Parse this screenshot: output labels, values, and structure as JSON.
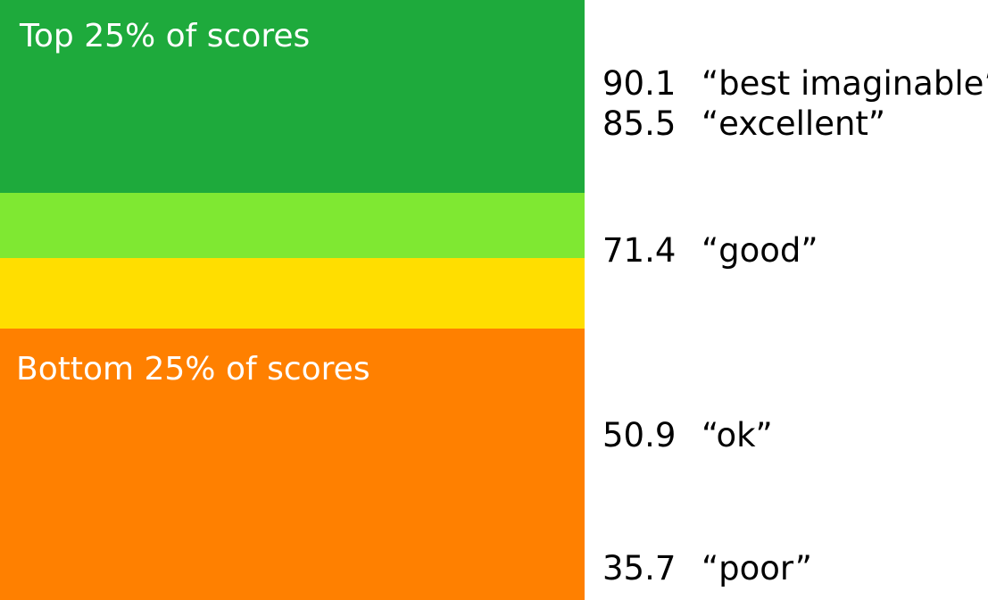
{
  "chart_data": {
    "type": "bar",
    "bands": [
      {
        "label": "Top 25% of scores",
        "color": "#1eaa3c"
      },
      {
        "label": "",
        "color": "#7fe832"
      },
      {
        "label": "",
        "color": "#ffde00"
      },
      {
        "label": "Bottom 25% of scores",
        "color": "#ff8000"
      }
    ],
    "ratings": [
      {
        "score": 90.1,
        "score_text": "90.1",
        "label": "“best imaginable”"
      },
      {
        "score": 85.5,
        "score_text": "85.5",
        "label": "“excellent”"
      },
      {
        "score": 71.4,
        "score_text": "71.4",
        "label": "“good”"
      },
      {
        "score": 50.9,
        "score_text": "50.9",
        "label": "“ok”"
      },
      {
        "score": 35.7,
        "score_text": "35.7",
        "label": "“poor”"
      }
    ]
  }
}
